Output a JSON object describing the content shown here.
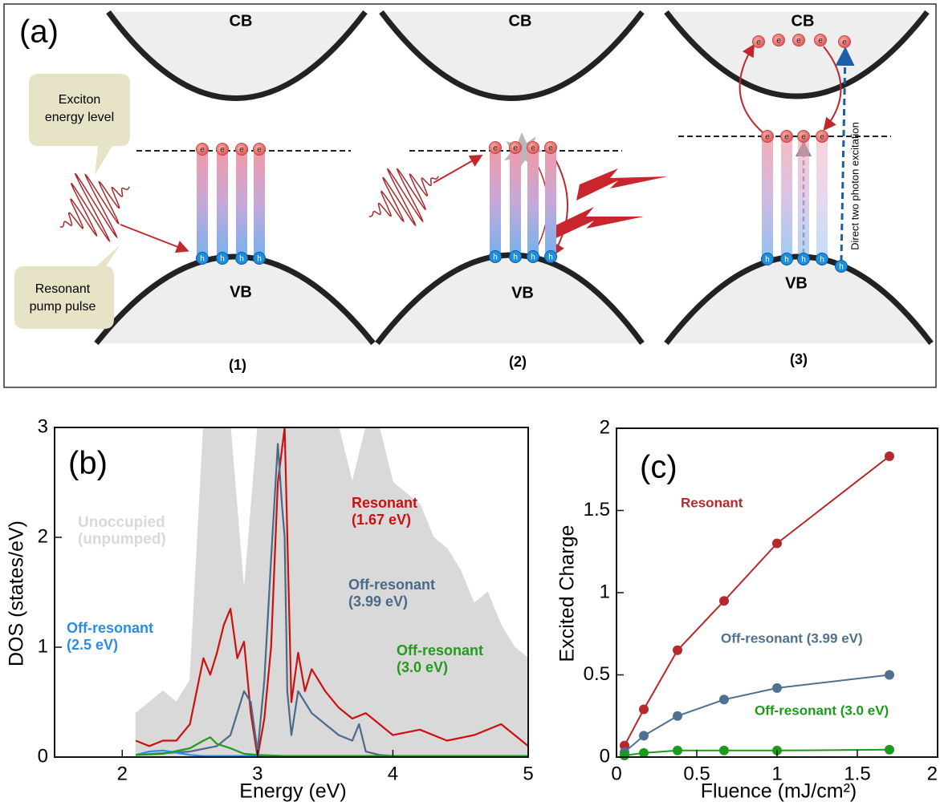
{
  "diagram": {
    "panel_label": "(a)",
    "cb": "CB",
    "vb": "VB",
    "steps": [
      "(1)",
      "(2)",
      "(3)"
    ],
    "exciton_callout": [
      "Exciton",
      "energy level"
    ],
    "pump_callout": [
      "Resonant",
      "pump pulse"
    ],
    "electron": "e",
    "hole": "h",
    "two_photon_label": "Direct two photon excitation"
  },
  "chart_data": [
    {
      "type": "line",
      "panel_label": "(b)",
      "x_label": "Energy (eV)",
      "y_label": "DOS (states/eV)",
      "xlim": [
        1.5,
        5
      ],
      "ylim": [
        0,
        3
      ],
      "xticks": [
        2,
        3,
        4,
        5
      ],
      "yticks": [
        0,
        1,
        2,
        3
      ],
      "series": [
        {
          "name": "Unoccupied",
          "name_line2": "(unpumped)",
          "color": "#d9d9d9",
          "fill": true,
          "x": [
            2.1,
            2.2,
            2.3,
            2.4,
            2.5,
            2.6,
            2.7,
            2.8,
            2.9,
            3.0,
            3.1,
            3.2,
            3.3,
            3.4,
            3.5,
            3.6,
            3.7,
            3.8,
            3.9,
            4.0,
            4.1,
            4.2,
            4.3,
            4.4,
            4.5,
            4.6,
            4.7,
            4.8,
            4.9,
            5.0
          ],
          "values": [
            0.4,
            0.5,
            0.6,
            0.5,
            0.7,
            3,
            3,
            3,
            1.5,
            3,
            3,
            3,
            3,
            3,
            3,
            3,
            2.5,
            3,
            3,
            2.5,
            2.4,
            2.3,
            2.0,
            1.9,
            1.7,
            1.4,
            1.5,
            1.2,
            1.0,
            0.9
          ]
        },
        {
          "name": "Resonant",
          "name_line2": "(1.67 eV)",
          "color": "#cc1010",
          "fill": false,
          "x": [
            2.1,
            2.2,
            2.3,
            2.4,
            2.5,
            2.55,
            2.6,
            2.65,
            2.7,
            2.75,
            2.8,
            2.85,
            2.9,
            2.95,
            3.0,
            3.05,
            3.1,
            3.15,
            3.2,
            3.25,
            3.3,
            3.35,
            3.4,
            3.5,
            3.6,
            3.7,
            3.8,
            3.9,
            4.0,
            4.2,
            4.4,
            4.6,
            4.8,
            5.0
          ],
          "values": [
            0.15,
            0.1,
            0.15,
            0.15,
            0.3,
            0.6,
            0.9,
            0.75,
            0.95,
            1.2,
            1.35,
            0.9,
            1.05,
            0.4,
            0,
            0.35,
            1.0,
            2.5,
            3.0,
            0.5,
            0.95,
            0.6,
            0.8,
            0.6,
            0.45,
            0.35,
            0.4,
            0.3,
            0.2,
            0.25,
            0.15,
            0.2,
            0.3,
            0.1
          ]
        },
        {
          "name": "Off-resonant",
          "name_line2": "(3.99 eV)",
          "color": "#4a6a8a",
          "fill": false,
          "x": [
            2.1,
            2.5,
            2.7,
            2.8,
            2.9,
            2.95,
            3.0,
            3.05,
            3.1,
            3.15,
            3.18,
            3.2,
            3.22,
            3.25,
            3.3,
            3.4,
            3.5,
            3.6,
            3.7,
            3.75,
            3.8,
            3.9,
            4.0
          ],
          "values": [
            0.02,
            0.05,
            0.1,
            0.2,
            0.6,
            0.5,
            0.05,
            0.7,
            1.8,
            2.85,
            2.3,
            2.0,
            0.6,
            0.2,
            0.6,
            0.4,
            0.3,
            0.2,
            0.15,
            0.3,
            0.05,
            0.02,
            0.01
          ]
        },
        {
          "name": "Off-resonant",
          "name_line2": "(2.5 eV)",
          "color": "#2b8ce6",
          "fill": false,
          "x": [
            2.1,
            2.2,
            2.3,
            2.4,
            2.5,
            2.6,
            2.8,
            3.0,
            3.5,
            4.0,
            5.0
          ],
          "values": [
            0.02,
            0.05,
            0.06,
            0.04,
            0.02,
            0.01,
            0.01,
            0.01,
            0.01,
            0.01,
            0.01
          ]
        },
        {
          "name": "Off-resonant",
          "name_line2": "(3.0 eV)",
          "color": "#22991f",
          "fill": false,
          "x": [
            2.1,
            2.3,
            2.5,
            2.6,
            2.65,
            2.7,
            2.8,
            2.9,
            3.0,
            3.2,
            3.5,
            4.0,
            5.0
          ],
          "values": [
            0.02,
            0.03,
            0.08,
            0.15,
            0.18,
            0.12,
            0.08,
            0.03,
            0.02,
            0.01,
            0.01,
            0.01,
            0.01
          ]
        }
      ]
    },
    {
      "type": "line",
      "panel_label": "(c)",
      "x_label": "Fluence (mJ/cm²)",
      "y_label": "Excited Charge",
      "markers": true,
      "xlim": [
        0,
        2
      ],
      "ylim": [
        0,
        2
      ],
      "xticks": [
        0,
        0.5,
        1,
        1.5,
        2
      ],
      "yticks": [
        0,
        0.5,
        1,
        1.5,
        2
      ],
      "series": [
        {
          "name": "Resonant",
          "color": "#b5282c",
          "x": [
            0.05,
            0.17,
            0.38,
            0.67,
            1.0,
            1.7
          ],
          "values": [
            0.07,
            0.29,
            0.65,
            0.95,
            1.3,
            1.83
          ]
        },
        {
          "name": "Off-resonant (3.99 eV)",
          "color": "#4f7090",
          "x": [
            0.05,
            0.17,
            0.38,
            0.67,
            1.0,
            1.7
          ],
          "values": [
            0.03,
            0.13,
            0.25,
            0.35,
            0.42,
            0.5
          ]
        },
        {
          "name": "Off-resonant (3.0 eV)",
          "color": "#1c9a1c",
          "x": [
            0.05,
            0.17,
            0.38,
            0.67,
            1.0,
            1.7
          ],
          "values": [
            0.01,
            0.025,
            0.04,
            0.04,
            0.04,
            0.045
          ]
        }
      ]
    }
  ]
}
